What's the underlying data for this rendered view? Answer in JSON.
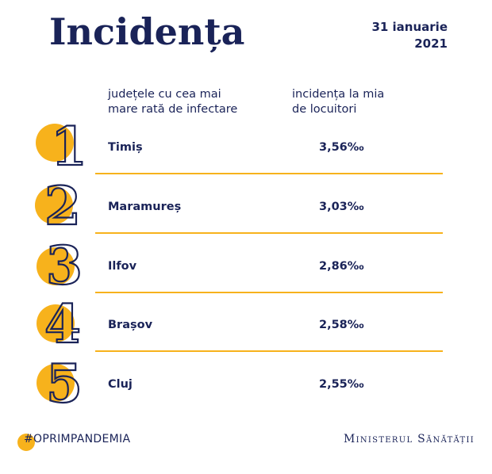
{
  "title": "Incidența",
  "date": {
    "line1": "31 ianuarie",
    "line2": "2021"
  },
  "headers": {
    "left": [
      "județele cu cea mai",
      "mare rată de infectare"
    ],
    "right": [
      "incidența la mia",
      "de locuitori"
    ]
  },
  "rows": [
    {
      "rank": "1",
      "county": "Timiș",
      "value": "3,56‰"
    },
    {
      "rank": "2",
      "county": "Maramureș",
      "value": "3,03‰"
    },
    {
      "rank": "3",
      "county": "Ilfov",
      "value": "2,86‰"
    },
    {
      "rank": "4",
      "county": "Brașov",
      "value": "2,58‰"
    },
    {
      "rank": "5",
      "county": "Cluj",
      "value": "2,55‰"
    }
  ],
  "footer": {
    "hashtag": "#OPRIMPANDEMIA",
    "ministry": "Ministerul Sănătății"
  },
  "colors": {
    "navy": "#1a2358",
    "accent": "#f7b21c"
  }
}
